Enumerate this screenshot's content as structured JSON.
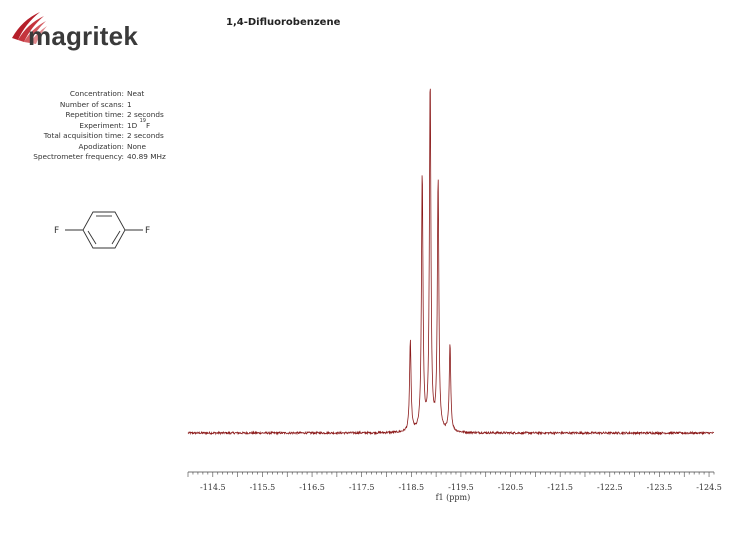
{
  "brand": {
    "name": "magritek",
    "accent_color": "#b51f2a"
  },
  "title": "1,4-Difluorobenzene",
  "parameters": [
    {
      "label": "Concentration:",
      "value": "Neat"
    },
    {
      "label": "Number of scans:",
      "value": "1"
    },
    {
      "label": "Repetition time:",
      "value": "2 seconds"
    },
    {
      "label": "Experiment:",
      "value": "1D ",
      "sup": "19",
      "suffix": "F"
    },
    {
      "label": "Total acquisition time:",
      "value": "2 seconds"
    },
    {
      "label": "Apodization:",
      "value": "None"
    },
    {
      "label": "Spectrometer frequency:",
      "value": "40.89 MHz"
    }
  ],
  "molecule": {
    "atoms": [
      "F",
      "F"
    ]
  },
  "chart_data": {
    "type": "line",
    "xlabel": "f1 (ppm)",
    "x_reversed": true,
    "xlim": [
      -114.0,
      -124.6
    ],
    "ticks": [
      -114.5,
      -115.5,
      -116.5,
      -117.5,
      -118.5,
      -119.5,
      -120.5,
      -121.5,
      -122.5,
      -123.5,
      -124.5
    ],
    "tick_labels": [
      "-114.5",
      "-115.5",
      "-116.5",
      "-117.5",
      "-118.5",
      "-119.5",
      "-120.5",
      "-121.5",
      "-122.5",
      "-123.5",
      "-124.5"
    ],
    "line_color": "#8b1a1a",
    "baseline": 0.0,
    "peaks": [
      {
        "x": -118.48,
        "height": 0.26
      },
      {
        "x": -118.72,
        "height": 0.74
      },
      {
        "x": -118.88,
        "height": 1.0
      },
      {
        "x": -119.04,
        "height": 0.72
      },
      {
        "x": -119.28,
        "height": 0.25
      }
    ]
  }
}
